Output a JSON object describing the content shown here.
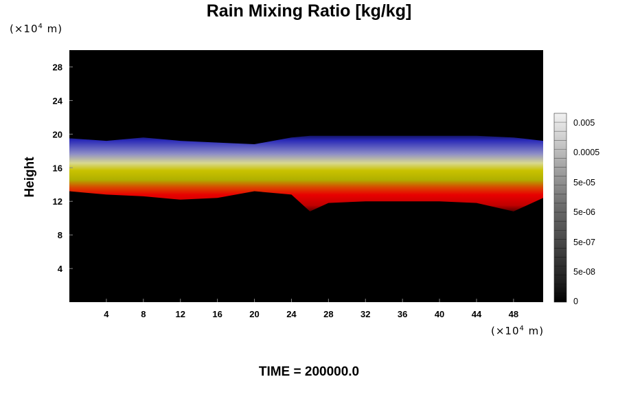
{
  "title": "Rain Mixing Ratio [kg/kg]",
  "y_unit": {
    "prefix": "(×10",
    "exp": "4",
    "suffix": " m)"
  },
  "x_unit": {
    "prefix": "(×10",
    "exp": "4",
    "suffix": " m)"
  },
  "ylabel": "Height",
  "time_label": "TIME = 200000.0",
  "colors": {
    "background": "#000000",
    "low": "#e00000",
    "mid": "#c8d000",
    "high": "#2020b0"
  },
  "chart_data": {
    "type": "heatmap",
    "title": "Rain Mixing Ratio [kg/kg]",
    "xlabel": "",
    "ylabel": "Height",
    "x_unit": "×10^4 m",
    "y_unit": "×10^4 m",
    "xlim": [
      0,
      51.2
    ],
    "ylim": [
      0,
      30
    ],
    "x_ticks": [
      4,
      8,
      12,
      16,
      20,
      24,
      28,
      32,
      36,
      40,
      44,
      48
    ],
    "y_ticks": [
      4,
      8,
      12,
      16,
      20,
      24,
      28
    ],
    "colorbar": {
      "scale": "log",
      "tick_labels": [
        "0.005",
        "0.0005",
        "5e-05",
        "5e-06",
        "5e-07",
        "5e-08",
        "0"
      ]
    },
    "band": {
      "x": [
        0,
        4,
        8,
        12,
        16,
        20,
        24,
        26,
        28,
        32,
        36,
        40,
        44,
        48,
        51.2
      ],
      "top": [
        19.5,
        19.2,
        19.6,
        19.2,
        19.0,
        18.8,
        19.6,
        19.8,
        19.8,
        19.8,
        19.8,
        19.8,
        19.8,
        19.6,
        19.2
      ],
      "bottom": [
        13.2,
        12.8,
        12.6,
        12.2,
        12.4,
        13.2,
        12.8,
        10.8,
        11.8,
        12.0,
        12.0,
        12.0,
        11.8,
        10.8,
        12.4
      ]
    }
  }
}
